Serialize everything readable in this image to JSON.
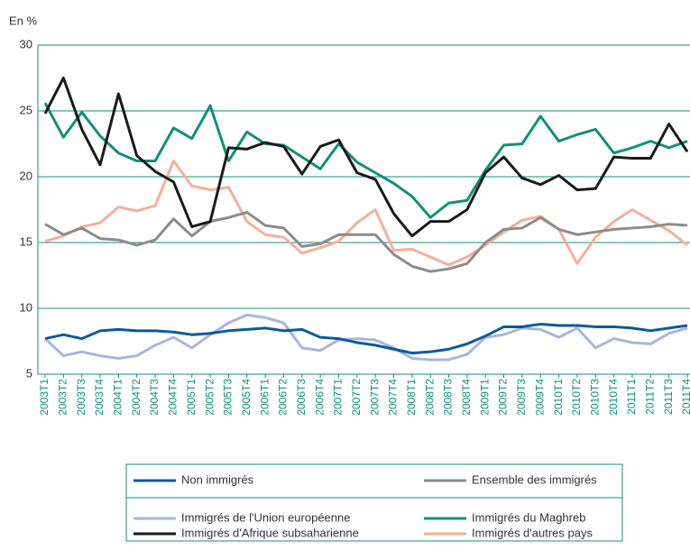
{
  "chart_data": {
    "type": "line",
    "ylabel": "En %",
    "categories": [
      "2003T1",
      "2003T2",
      "2003T3",
      "2003T4",
      "2004T1",
      "2004T2",
      "2004T3",
      "2004T4",
      "2005T1",
      "2005T2",
      "2005T3",
      "2005T4",
      "2006T1",
      "2006T2",
      "2006T3",
      "2006T4",
      "2007T1",
      "2007T2",
      "2007T3",
      "2007T4",
      "2008T1",
      "2008T2",
      "2008T3",
      "2008T4",
      "2009T1",
      "2009T2",
      "2009T3",
      "2009T4",
      "2010T1",
      "2010T2",
      "2010T3",
      "2010T4",
      "2011T1",
      "2011T2",
      "2011T3",
      "2011T4"
    ],
    "series": [
      {
        "name": "Non immigrés",
        "color": "#0a5a9c",
        "values": [
          7.7,
          8.0,
          7.7,
          8.3,
          8.4,
          8.3,
          8.3,
          8.2,
          8.0,
          8.1,
          8.3,
          8.4,
          8.5,
          8.3,
          8.4,
          7.8,
          7.7,
          7.4,
          7.2,
          6.9,
          6.6,
          6.7,
          6.9,
          7.3,
          7.9,
          8.6,
          8.6,
          8.8,
          8.7,
          8.7,
          8.6,
          8.6,
          8.5,
          8.3,
          8.5,
          8.7
        ]
      },
      {
        "name": "Ensemble des immigrés",
        "color": "#8c8c8c",
        "values": [
          16.4,
          15.6,
          16.1,
          15.3,
          15.2,
          14.8,
          15.2,
          16.8,
          15.5,
          16.6,
          16.9,
          17.3,
          16.3,
          16.1,
          14.7,
          14.9,
          15.6,
          15.6,
          15.6,
          14.1,
          13.2,
          12.8,
          13.0,
          13.4,
          15.0,
          16.0,
          16.1,
          16.9,
          16.0,
          15.6,
          15.8,
          16.0,
          16.1,
          16.2,
          16.4,
          16.3
        ]
      },
      {
        "name": "Immigrés de l'Union européenne",
        "color": "#aab4dd",
        "values": [
          7.7,
          6.4,
          6.7,
          6.4,
          6.2,
          6.4,
          7.2,
          7.8,
          7.0,
          8.0,
          8.9,
          9.5,
          9.3,
          8.9,
          7.0,
          6.8,
          7.6,
          7.7,
          7.6,
          7.0,
          6.2,
          6.1,
          6.1,
          6.5,
          7.8,
          8.0,
          8.5,
          8.4,
          7.8,
          8.5,
          7.0,
          7.7,
          7.4,
          7.3,
          8.1,
          8.5
        ]
      },
      {
        "name": "Immigrés du Maghreb",
        "color": "#0f9179",
        "values": [
          25.6,
          23.0,
          24.9,
          23.1,
          21.8,
          21.2,
          21.2,
          23.7,
          22.9,
          25.4,
          21.2,
          23.4,
          22.5,
          22.4,
          21.5,
          20.6,
          22.5,
          21.1,
          20.3,
          19.5,
          18.5,
          16.9,
          18.0,
          18.2,
          20.5,
          22.4,
          22.5,
          24.6,
          22.7,
          23.2,
          23.6,
          21.8,
          22.2,
          22.7,
          22.2,
          22.7
        ]
      },
      {
        "name": "Immigrés d'Afrique subsaharienne",
        "color": "#1a1a1a",
        "values": [
          24.8,
          27.5,
          23.6,
          20.9,
          26.3,
          21.6,
          20.4,
          19.6,
          16.2,
          16.6,
          22.2,
          22.1,
          22.6,
          22.3,
          20.2,
          22.3,
          22.8,
          20.3,
          19.8,
          17.2,
          15.5,
          16.6,
          16.6,
          17.5,
          20.3,
          21.5,
          19.9,
          19.4,
          20.1,
          19.0,
          19.1,
          21.5,
          21.4,
          21.4,
          24.0,
          21.9
        ]
      },
      {
        "name": "Immigrés d'autres pays",
        "color": "#f4b09a",
        "values": [
          15.1,
          15.5,
          16.2,
          16.5,
          17.7,
          17.4,
          17.8,
          21.2,
          19.3,
          19.0,
          19.2,
          16.6,
          15.6,
          15.4,
          14.2,
          14.6,
          15.1,
          16.5,
          17.5,
          14.4,
          14.5,
          13.9,
          13.3,
          13.9,
          14.8,
          15.8,
          16.7,
          17.0,
          16.0,
          13.4,
          15.4,
          16.6,
          17.5,
          16.7,
          15.9,
          14.8
        ]
      }
    ],
    "ylim": [
      5,
      30
    ],
    "yticks": [
      5,
      10,
      15,
      20,
      25,
      30
    ],
    "grid": true,
    "legend": "bottom"
  }
}
